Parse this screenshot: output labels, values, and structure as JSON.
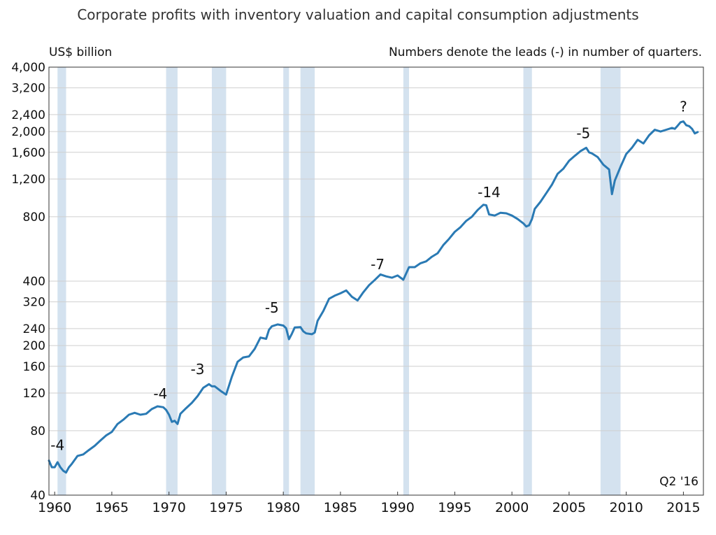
{
  "chart_data": {
    "type": "line",
    "title": "Corporate profits with inventory valuation and capital consumption adjustments",
    "unit_label": "US$ billion",
    "note": "Numbers denote the leads (-) in number of quarters.",
    "stamp": "Q2 '16",
    "yscale": "log",
    "ylim": [
      40,
      4000
    ],
    "xlim": [
      1959.5,
      2016.75
    ],
    "yticks": [
      40,
      80,
      120,
      160,
      200,
      240,
      320,
      400,
      800,
      1200,
      1600,
      2000,
      2400,
      3200,
      4000
    ],
    "ytick_labels": [
      "40",
      "80",
      "120",
      "160",
      "200",
      "240",
      "320",
      "400",
      "800",
      "1,200",
      "1,600",
      "2,000",
      "2,400",
      "3,200",
      "4,000"
    ],
    "xticks": [
      1960,
      1965,
      1970,
      1975,
      1980,
      1985,
      1990,
      1995,
      2000,
      2005,
      2010,
      2015
    ],
    "xtick_labels": [
      "1960",
      "1965",
      "1970",
      "1975",
      "1980",
      "1985",
      "1990",
      "1995",
      "2000",
      "2005",
      "2010",
      "2015"
    ],
    "recessions": [
      [
        1960.25,
        1961.0
      ],
      [
        1969.75,
        1970.75
      ],
      [
        1973.75,
        1975.0
      ],
      [
        1980.0,
        1980.5
      ],
      [
        1981.5,
        1982.75
      ],
      [
        1990.5,
        1991.0
      ],
      [
        2001.0,
        2001.75
      ],
      [
        2007.75,
        2009.5
      ]
    ],
    "series": [
      {
        "name": "Corporate profits",
        "color": "#2a7ab4",
        "x": [
          1959.5,
          1959.75,
          1960.0,
          1960.25,
          1960.5,
          1960.75,
          1961.0,
          1961.25,
          1961.5,
          1962.0,
          1962.5,
          1963.0,
          1963.5,
          1964.0,
          1964.5,
          1965.0,
          1965.5,
          1966.0,
          1966.5,
          1967.0,
          1967.5,
          1968.0,
          1968.5,
          1969.0,
          1969.5,
          1969.75,
          1970.0,
          1970.25,
          1970.5,
          1970.75,
          1971.0,
          1971.5,
          1972.0,
          1972.5,
          1973.0,
          1973.5,
          1973.75,
          1974.0,
          1974.5,
          1975.0,
          1975.5,
          1976.0,
          1976.5,
          1977.0,
          1977.5,
          1978.0,
          1978.5,
          1978.75,
          1979.0,
          1979.5,
          1980.0,
          1980.25,
          1980.5,
          1980.75,
          1981.0,
          1981.5,
          1981.75,
          1982.0,
          1982.5,
          1982.75,
          1983.0,
          1983.5,
          1984.0,
          1984.5,
          1985.0,
          1985.5,
          1986.0,
          1986.5,
          1987.0,
          1987.5,
          1988.0,
          1988.5,
          1989.0,
          1989.5,
          1990.0,
          1990.5,
          1991.0,
          1991.5,
          1992.0,
          1992.5,
          1993.0,
          1993.5,
          1994.0,
          1994.5,
          1995.0,
          1995.5,
          1996.0,
          1996.5,
          1997.0,
          1997.5,
          1997.75,
          1998.0,
          1998.5,
          1999.0,
          1999.5,
          2000.0,
          2000.5,
          2001.0,
          2001.25,
          2001.5,
          2001.75,
          2002.0,
          2002.5,
          2003.0,
          2003.5,
          2004.0,
          2004.5,
          2005.0,
          2005.5,
          2006.0,
          2006.5,
          2006.75,
          2007.0,
          2007.5,
          2008.0,
          2008.5,
          2008.75,
          2009.0,
          2009.5,
          2010.0,
          2010.5,
          2011.0,
          2011.5,
          2012.0,
          2012.5,
          2013.0,
          2013.5,
          2014.0,
          2014.25,
          2014.5,
          2014.75,
          2015.0,
          2015.25,
          2015.5,
          2015.75,
          2016.0,
          2016.25
        ],
        "values": [
          58,
          54,
          54,
          57,
          54,
          52,
          51,
          54,
          56,
          61,
          62,
          65,
          68,
          72,
          76,
          79,
          86,
          90,
          95,
          97,
          95,
          96,
          101,
          104,
          103,
          100,
          95,
          88,
          89,
          86,
          96,
          102,
          108,
          116,
          127,
          132,
          129,
          129,
          123,
          118,
          143,
          168,
          176,
          178,
          193,
          218,
          215,
          237,
          246,
          251,
          248,
          241,
          214,
          227,
          243,
          244,
          233,
          228,
          226,
          230,
          261,
          290,
          331,
          342,
          351,
          362,
          338,
          325,
          355,
          383,
          405,
          430,
          421,
          415,
          425,
          406,
          465,
          465,
          485,
          495,
          520,
          540,
          590,
          630,
          680,
          715,
          765,
          800,
          860,
          910,
          905,
          820,
          810,
          835,
          830,
          810,
          780,
          745,
          720,
          730,
          780,
          870,
          940,
          1030,
          1130,
          1270,
          1340,
          1460,
          1540,
          1620,
          1680,
          1600,
          1580,
          1520,
          1400,
          1330,
          1020,
          1180,
          1370,
          1570,
          1680,
          1830,
          1760,
          1920,
          2040,
          2000,
          2040,
          2080,
          2060,
          2130,
          2210,
          2230,
          2140,
          2120,
          2060,
          1960,
          1990
        ]
      }
    ],
    "annotations": [
      {
        "text": "-4",
        "x": 1960.25,
        "y": 65
      },
      {
        "text": "-4",
        "x": 1969.25,
        "y": 113
      },
      {
        "text": "-3",
        "x": 1972.5,
        "y": 147
      },
      {
        "text": "-5",
        "x": 1979.0,
        "y": 285
      },
      {
        "text": "-7",
        "x": 1988.25,
        "y": 455
      },
      {
        "text": "-14",
        "x": 1998.0,
        "y": 985
      },
      {
        "text": "-5",
        "x": 2006.25,
        "y": 1865
      },
      {
        "text": "?",
        "x": 2015.0,
        "y": 2480
      }
    ]
  }
}
